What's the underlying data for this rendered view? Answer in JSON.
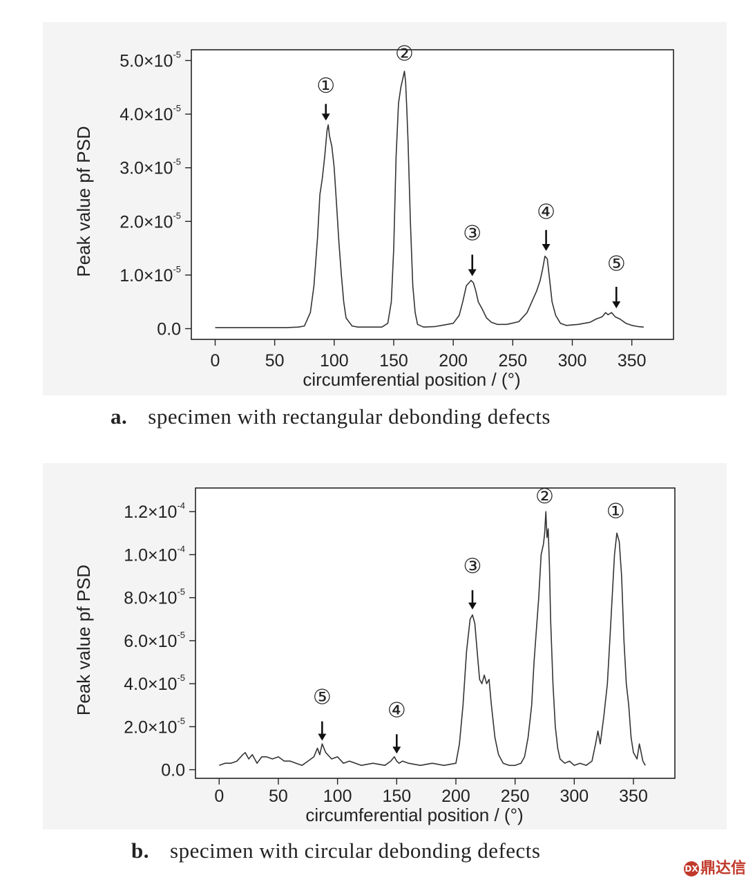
{
  "chart_data": [
    {
      "type": "line",
      "caption_label": "a.",
      "caption_text": "specimen with rectangular debonding defects",
      "xlabel": "circumferential position / (°)",
      "ylabel": "Peak value pf PSD",
      "xlim": [
        -20,
        385
      ],
      "ylim": [
        -2e-06,
        5.2e-05
      ],
      "x_ticks": [
        0,
        50,
        100,
        150,
        200,
        250,
        300,
        350
      ],
      "y_ticks": [
        {
          "mant": "0.0",
          "exp": ""
        },
        {
          "mant": "1.0×10",
          "exp": "-5"
        },
        {
          "mant": "2.0×10",
          "exp": "-5"
        },
        {
          "mant": "3.0×10",
          "exp": "-5"
        },
        {
          "mant": "4.0×10",
          "exp": "-5"
        },
        {
          "mant": "5.0×10",
          "exp": "-5"
        }
      ],
      "y_tick_values": [
        0,
        1e-05,
        2e-05,
        3e-05,
        4e-05,
        5e-05
      ],
      "series": [
        {
          "x": [
            0,
            20,
            40,
            60,
            70,
            75,
            80,
            83,
            86,
            88,
            90,
            92,
            94,
            95,
            96,
            97,
            98,
            100,
            102,
            104,
            106,
            108,
            110,
            115,
            120,
            130,
            140,
            145,
            148,
            150,
            152,
            154,
            156,
            158,
            159,
            160,
            161,
            162,
            164,
            166,
            168,
            170,
            175,
            185,
            195,
            200,
            205,
            208,
            211,
            213,
            215,
            217,
            219,
            221,
            224,
            228,
            232,
            237,
            245,
            255,
            262,
            266,
            270,
            273,
            275,
            277,
            279,
            281,
            283,
            286,
            290,
            295,
            305,
            315,
            320,
            325,
            328,
            330,
            333,
            336,
            340,
            345,
            350,
            355,
            360
          ],
          "y": [
            2e-07,
            2e-07,
            2e-07,
            2e-07,
            3e-07,
            5e-07,
            3e-06,
            8e-06,
            1.7e-05,
            2.5e-05,
            2.8e-05,
            3.2e-05,
            3.7e-05,
            3.8e-05,
            3.6e-05,
            3.5e-05,
            3.4e-05,
            3e-05,
            2.3e-05,
            1.6e-05,
            1e-05,
            5e-06,
            2e-06,
            5e-07,
            3e-07,
            3e-07,
            3e-07,
            1e-06,
            5e-06,
            1.5e-05,
            3.2e-05,
            4.2e-05,
            4.5e-05,
            4.7e-05,
            4.8e-05,
            4.6e-05,
            4.1e-05,
            3.5e-05,
            2e-05,
            8e-06,
            3e-06,
            8e-07,
            3e-07,
            4e-07,
            8e-07,
            1e-06,
            2.5e-06,
            5e-06,
            8e-06,
            8.5e-06,
            9e-06,
            8.5e-06,
            7e-06,
            5e-06,
            3.8e-06,
            2e-06,
            1.2e-06,
            8e-07,
            8e-07,
            1.3e-06,
            3e-06,
            5e-06,
            7e-06,
            9e-06,
            1.1e-05,
            1.35e-05,
            1.3e-05,
            9e-06,
            5e-06,
            2.5e-06,
            1e-06,
            6e-07,
            8e-07,
            1.2e-06,
            1.8e-06,
            2.2e-06,
            3e-06,
            2.6e-06,
            3e-06,
            2.2e-06,
            1.8e-06,
            1e-06,
            6e-07,
            4e-07,
            3e-07
          ]
        }
      ],
      "annotations": [
        {
          "label": "①",
          "x": 93,
          "y": 4.4e-05,
          "arrow_from": 4.19e-05,
          "arrow_to": 3.88e-05
        },
        {
          "label": "②",
          "x": 159,
          "y": 5e-05,
          "arrow_from": null,
          "arrow_to": null
        },
        {
          "label": "③",
          "x": 216,
          "y": 1.65e-05,
          "arrow_from": 1.38e-05,
          "arrow_to": 9.8e-06
        },
        {
          "label": "④",
          "x": 278,
          "y": 2.05e-05,
          "arrow_from": 1.84e-05,
          "arrow_to": 1.45e-05
        },
        {
          "label": "⑤",
          "x": 337,
          "y": 1.08e-05,
          "arrow_from": 7.8e-06,
          "arrow_to": 3.8e-06
        }
      ]
    },
    {
      "type": "line",
      "caption_label": "b.",
      "caption_text": "specimen with circular debonding defects",
      "xlabel": "circumferential position / (°)",
      "ylabel": "Peak value pf PSD",
      "xlim": [
        -20,
        385
      ],
      "ylim": [
        -4e-06,
        0.000131
      ],
      "x_ticks": [
        0,
        50,
        100,
        150,
        200,
        250,
        300,
        350
      ],
      "y_ticks": [
        {
          "mant": "0.0",
          "exp": ""
        },
        {
          "mant": "2.0×10",
          "exp": "-5"
        },
        {
          "mant": "4.0×10",
          "exp": "-5"
        },
        {
          "mant": "6.0×10",
          "exp": "-5"
        },
        {
          "mant": "8.0×10",
          "exp": "-5"
        },
        {
          "mant": "1.0×10",
          "exp": "-4"
        },
        {
          "mant": "1.2×10",
          "exp": "-4"
        }
      ],
      "y_tick_values": [
        0,
        2e-05,
        4e-05,
        6e-05,
        8e-05,
        0.0001,
        0.00012
      ],
      "series": [
        {
          "x": [
            0,
            5,
            10,
            15,
            20,
            22,
            25,
            28,
            32,
            36,
            40,
            45,
            50,
            55,
            60,
            65,
            70,
            75,
            80,
            83,
            85,
            87,
            90,
            95,
            100,
            105,
            110,
            120,
            130,
            140,
            145,
            148,
            150,
            152,
            155,
            160,
            170,
            180,
            190,
            200,
            203,
            206,
            209,
            212,
            214,
            216,
            218,
            220,
            222,
            224,
            226,
            228,
            230,
            233,
            236,
            240,
            245,
            250,
            255,
            258,
            261,
            264,
            266,
            268,
            270,
            272,
            274,
            275,
            276,
            277,
            278,
            279,
            280,
            282,
            284,
            286,
            288,
            292,
            296,
            300,
            305,
            310,
            315,
            318,
            320,
            322,
            325,
            328,
            330,
            332,
            334,
            336,
            338,
            340,
            342,
            344,
            346,
            348,
            350,
            353,
            355,
            358,
            360
          ],
          "y": [
            2e-06,
            3e-06,
            3e-06,
            4e-06,
            7e-06,
            8e-06,
            5e-06,
            7e-06,
            3e-06,
            6e-06,
            6e-06,
            5e-06,
            6e-06,
            4e-06,
            4e-06,
            3e-06,
            2e-06,
            4e-06,
            6e-06,
            1e-05,
            7e-06,
            1.2e-05,
            8e-06,
            5e-06,
            6e-06,
            3e-06,
            4e-06,
            2e-06,
            3e-06,
            2e-06,
            4e-06,
            6e-06,
            4e-06,
            3e-06,
            4e-06,
            3e-06,
            2e-06,
            3e-06,
            2e-06,
            3e-06,
            1.2e-05,
            3e-05,
            5.5e-05,
            7e-05,
            7.2e-05,
            6.8e-05,
            5.5e-05,
            4.2e-05,
            4e-05,
            4.4e-05,
            4e-05,
            4.2e-05,
            3e-05,
            1.5e-05,
            7e-06,
            3e-06,
            2e-06,
            2e-06,
            3e-06,
            6e-06,
            1.5e-05,
            3e-05,
            5e-05,
            6.5e-05,
            8e-05,
            0.0001,
            0.000105,
            0.00011,
            0.00012,
            0.000108,
            0.000112,
            9.5e-05,
            7e-05,
            4e-05,
            2e-05,
            1e-05,
            5e-06,
            3e-06,
            4e-06,
            2e-06,
            3e-06,
            2e-06,
            4e-06,
            1.2e-05,
            1.8e-05,
            1.2e-05,
            2.5e-05,
            4e-05,
            6e-05,
            8e-05,
            0.0001,
            0.00011,
            0.000106,
            9e-05,
            6e-05,
            4e-05,
            3e-05,
            1.5e-05,
            8e-06,
            5e-06,
            1.2e-05,
            4e-06,
            2e-06
          ]
        }
      ],
      "annotations": [
        {
          "label": "①",
          "x": 335,
          "y": 0.000117,
          "arrow_from": null,
          "arrow_to": null
        },
        {
          "label": "②",
          "x": 275,
          "y": 0.000124,
          "arrow_from": null,
          "arrow_to": null
        },
        {
          "label": "③",
          "x": 214,
          "y": 9.15e-05,
          "arrow_from": 8.35e-05,
          "arrow_to": 7.45e-05
        },
        {
          "label": "④",
          "x": 150,
          "y": 2.45e-05,
          "arrow_from": 1.65e-05,
          "arrow_to": 7.5e-06
        },
        {
          "label": "⑤",
          "x": 87,
          "y": 3.05e-05,
          "arrow_from": 2.25e-05,
          "arrow_to": 1.35e-05
        }
      ]
    }
  ],
  "watermark": {
    "text": "鼎达信",
    "icon": "seal-icon"
  }
}
